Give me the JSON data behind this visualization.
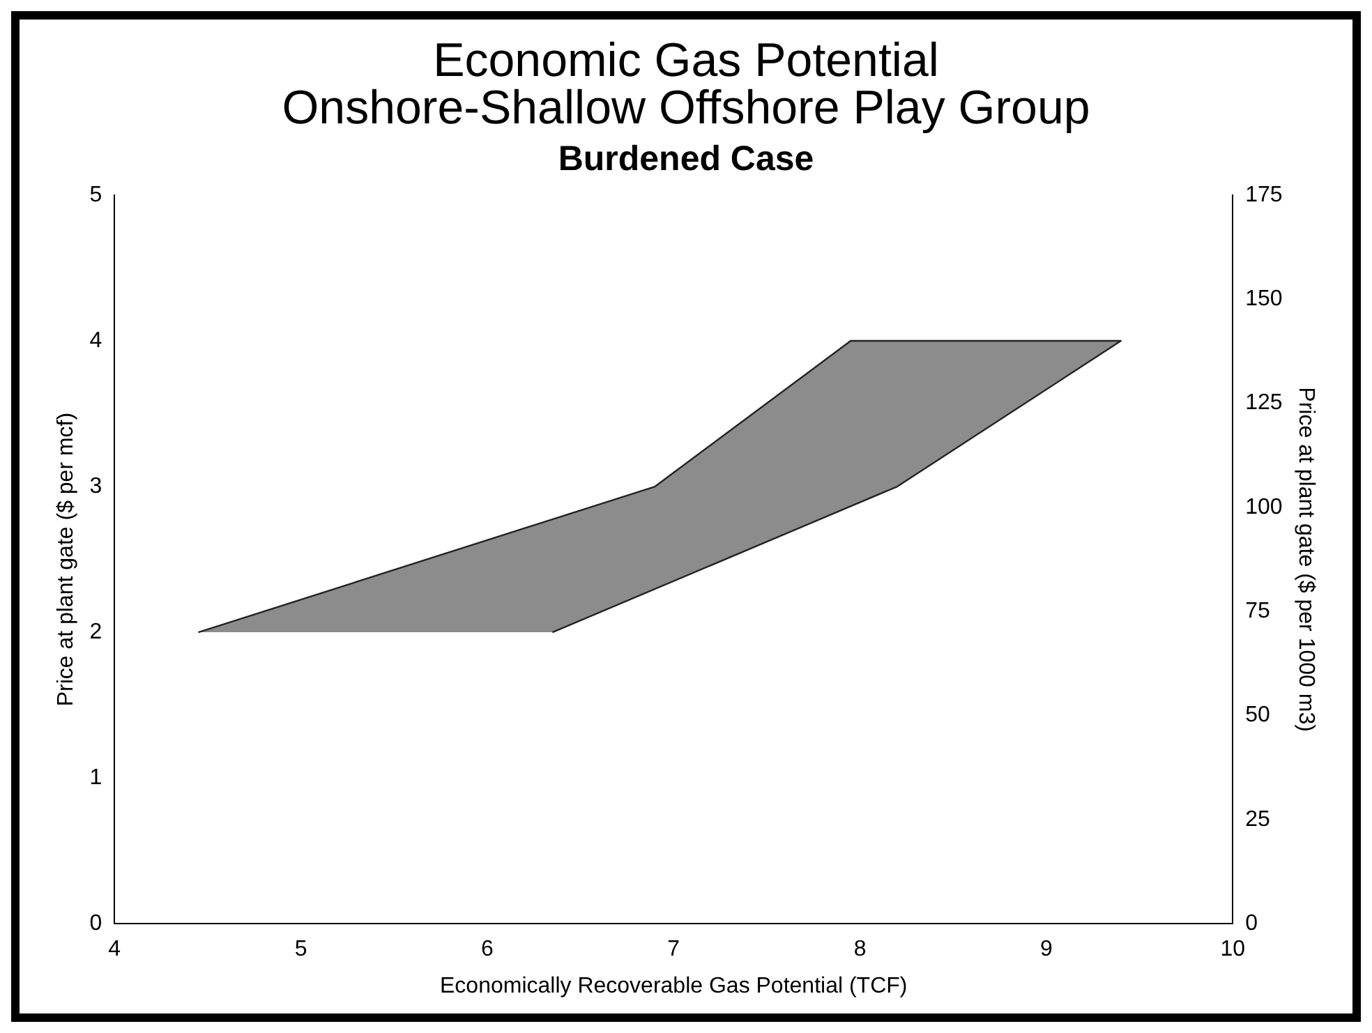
{
  "chart_data": {
    "type": "area",
    "title": "Economic Gas Potential\nOnshore-Shallow Offshore Play Group",
    "subtitle": "Burdened Case",
    "xlabel": "Economically Recoverable Gas Potential (TCF)",
    "ylabel": "Price at plant gate ($ per mcf)",
    "y2label": "Price at plant gate ($ per 1000 m3)",
    "series": [
      {
        "color": "#8c8c8c",
        "x": [
          4.45,
          6.9,
          7.95,
          9.4,
          8.2,
          6.35
        ],
        "values": [
          2,
          3,
          4,
          4,
          3,
          2
        ]
      }
    ],
    "xlim": [
      4,
      10
    ],
    "xticks": [
      4,
      5,
      6,
      7,
      8,
      9,
      10
    ],
    "ylim": [
      0,
      5
    ],
    "yticks": [
      0,
      1,
      2,
      3,
      4,
      5
    ],
    "y2lim": [
      0,
      175
    ],
    "y2ticks": [
      0,
      25,
      50,
      75,
      100,
      125,
      150,
      175
    ],
    "grid": false,
    "legend": false
  }
}
